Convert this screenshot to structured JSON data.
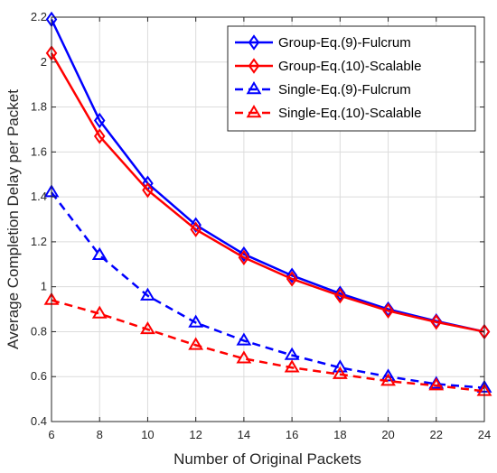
{
  "chart_data": {
    "type": "line",
    "xlabel": "Number of Original Packets",
    "ylabel": "Average Completion Delay per Packet",
    "x": [
      6,
      8,
      10,
      12,
      14,
      16,
      18,
      20,
      22,
      24
    ],
    "xlim": [
      6,
      24
    ],
    "ylim": [
      0.4,
      2.2
    ],
    "xticks": [
      "6",
      "8",
      "10",
      "12",
      "14",
      "16",
      "18",
      "20",
      "22",
      "24"
    ],
    "yticks": [
      "0.4",
      "0.6",
      "0.8",
      "1",
      "1.2",
      "1.4",
      "1.6",
      "1.8",
      "2",
      "2.2"
    ],
    "grid": true,
    "legend_position": "top-right",
    "series": [
      {
        "name": "Group-Eq.(9)-Fulcrum",
        "values": [
          2.19,
          1.74,
          1.46,
          1.275,
          1.145,
          1.05,
          0.97,
          0.9,
          0.847,
          0.8
        ],
        "color": "#0000ff",
        "dash": "solid",
        "marker": "diamond"
      },
      {
        "name": "Group-Eq.(10)-Scalable",
        "values": [
          2.04,
          1.67,
          1.43,
          1.255,
          1.13,
          1.035,
          0.96,
          0.893,
          0.843,
          0.8
        ],
        "color": "#ff0000",
        "dash": "solid",
        "marker": "diamond"
      },
      {
        "name": "Single-Eq.(9)-Fulcrum",
        "values": [
          1.42,
          1.14,
          0.96,
          0.84,
          0.76,
          0.695,
          0.64,
          0.6,
          0.567,
          0.55
        ],
        "color": "#0000ff",
        "dash": "dashed",
        "marker": "triangle"
      },
      {
        "name": "Single-Eq.(10)-Scalable",
        "values": [
          0.94,
          0.88,
          0.81,
          0.74,
          0.68,
          0.64,
          0.61,
          0.58,
          0.56,
          0.535
        ],
        "color": "#ff0000",
        "dash": "dashed",
        "marker": "triangle"
      }
    ]
  }
}
